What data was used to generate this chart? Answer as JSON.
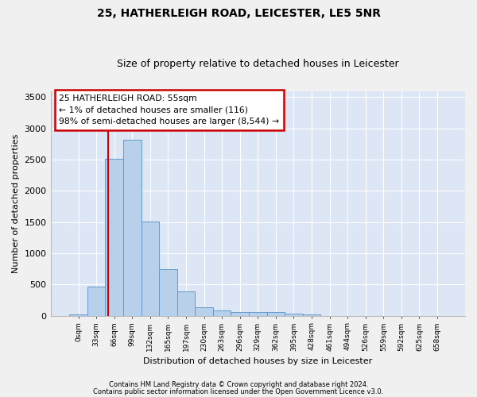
{
  "title1": "25, HATHERLEIGH ROAD, LEICESTER, LE5 5NR",
  "title2": "Size of property relative to detached houses in Leicester",
  "xlabel": "Distribution of detached houses by size in Leicester",
  "ylabel": "Number of detached properties",
  "bar_labels": [
    "0sqm",
    "33sqm",
    "66sqm",
    "99sqm",
    "132sqm",
    "165sqm",
    "197sqm",
    "230sqm",
    "263sqm",
    "296sqm",
    "329sqm",
    "362sqm",
    "395sqm",
    "428sqm",
    "461sqm",
    "494sqm",
    "526sqm",
    "559sqm",
    "592sqm",
    "625sqm",
    "658sqm"
  ],
  "bar_values": [
    20,
    470,
    2510,
    2820,
    1510,
    750,
    385,
    140,
    80,
    60,
    55,
    55,
    30,
    20,
    0,
    0,
    0,
    0,
    0,
    0,
    0
  ],
  "bar_color": "#b8d0ea",
  "bar_edge_color": "#6699cc",
  "property_line_bin": 1.67,
  "ylim": [
    0,
    3600
  ],
  "yticks": [
    0,
    500,
    1000,
    1500,
    2000,
    2500,
    3000,
    3500
  ],
  "annotation_lines": [
    "25 HATHERLEIGH ROAD: 55sqm",
    "← 1% of detached houses are smaller (116)",
    "98% of semi-detached houses are larger (8,544) →"
  ],
  "annotation_box_color": "#ffffff",
  "annotation_box_edge": "#cc0000",
  "red_line_color": "#cc0000",
  "footer1": "Contains HM Land Registry data © Crown copyright and database right 2024.",
  "footer2": "Contains public sector information licensed under the Open Government Licence v3.0.",
  "fig_bg_color": "#f0f0f0",
  "plot_bg_color": "#dce6f5"
}
